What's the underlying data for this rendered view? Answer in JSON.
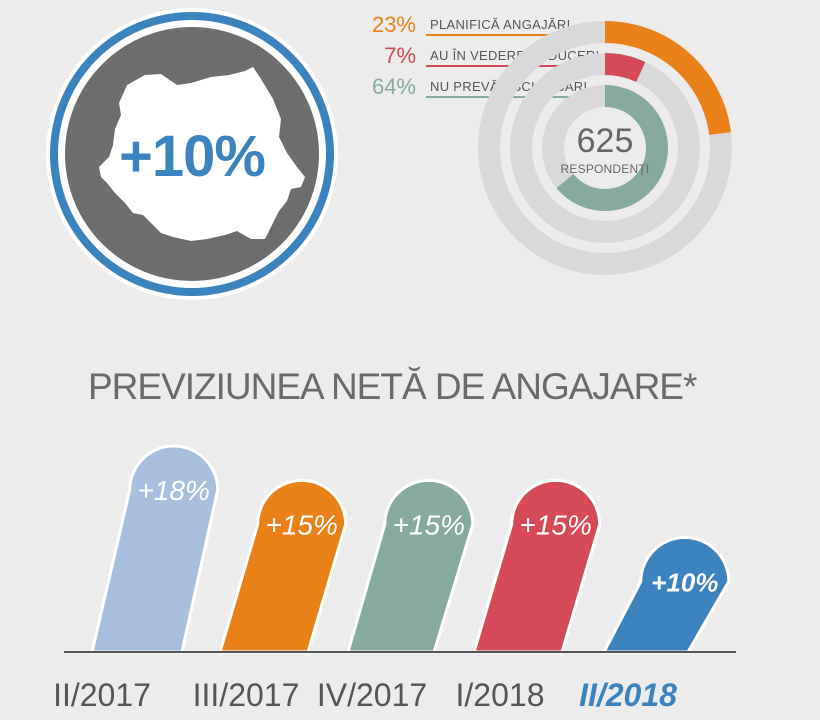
{
  "headline": {
    "value": "+10%"
  },
  "survey": {
    "respondents_count": "625",
    "respondents_label": "RESPONDENȚI",
    "items": [
      {
        "pct": "23%",
        "value": 23,
        "label": "PLANIFICĂ ANGAJĂRI",
        "color": "#e98018"
      },
      {
        "pct": "7%",
        "value": 7,
        "label": "AU ÎN VEDERE REDUCERI",
        "color": "#d64a58"
      },
      {
        "pct": "64%",
        "value": 64,
        "label": "NU PREVĂD SCHIMBĂRI",
        "color": "#86aa9c"
      }
    ]
  },
  "colors": {
    "accent_blue": "#3b83bf",
    "badge_gray": "#6e6d6e",
    "ring_track": "#d9d9d9"
  },
  "chart_data": {
    "type": "bar",
    "title": "PREVIZIUNEA NETĂ DE ANGAJARE*",
    "categories": [
      "II/2017",
      "III/2017",
      "IV/2017",
      "I/2018",
      "II/2018"
    ],
    "values": [
      18,
      15,
      15,
      15,
      10
    ],
    "value_labels": [
      "+18%",
      "+15%",
      "+15%",
      "+15%",
      "+10%"
    ],
    "colors": [
      "#a8bedd",
      "#e98018",
      "#86aa9c",
      "#d64a58",
      "#3b83bf"
    ],
    "highlight_index": 4,
    "ylim": [
      0,
      18
    ],
    "grid": false
  }
}
